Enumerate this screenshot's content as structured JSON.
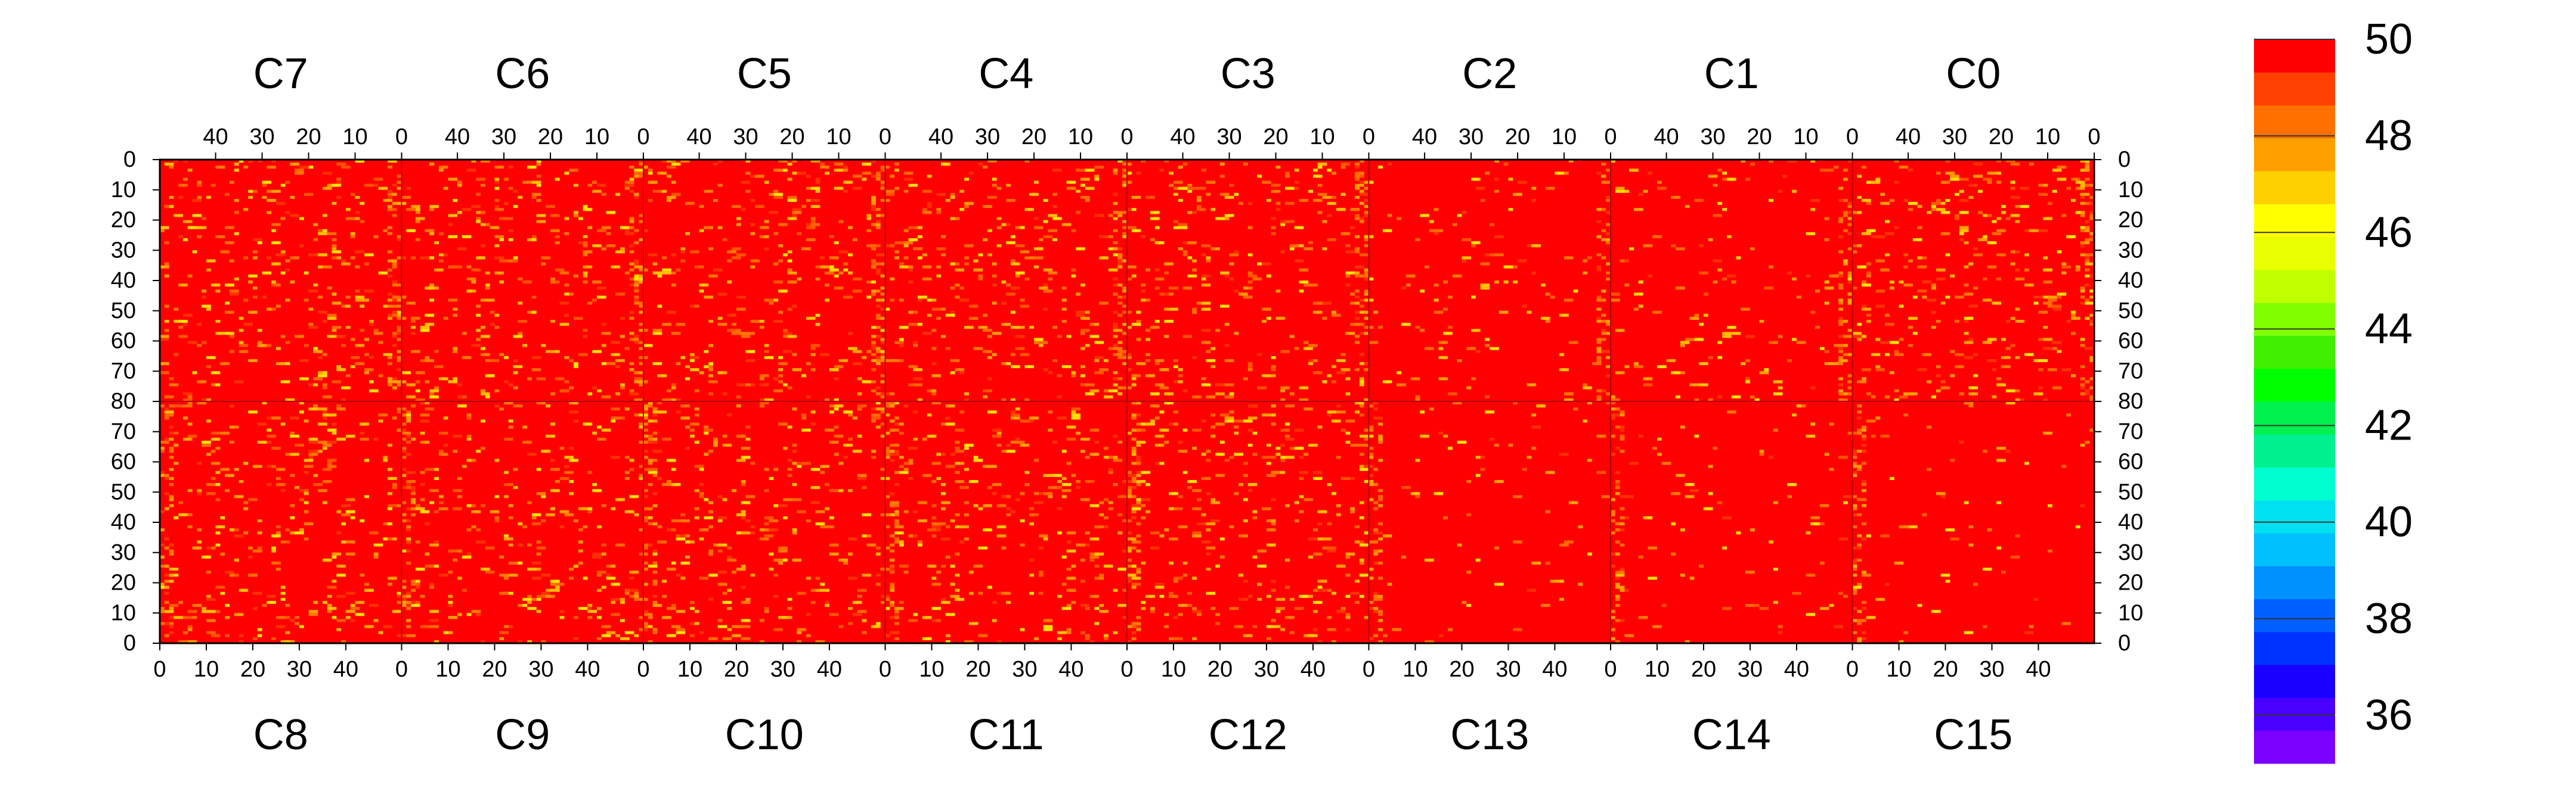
{
  "chart_data": {
    "type": "heatmap",
    "title": "",
    "colorbar": {
      "min": 35,
      "max": 50,
      "ticks": [
        36,
        38,
        40,
        42,
        44,
        46,
        48,
        50
      ],
      "colors": [
        "#7b00ff",
        "#4a00ff",
        "#1a00ff",
        "#0033ff",
        "#0060ff",
        "#0090ff",
        "#00bfff",
        "#00e0f0",
        "#00ffd0",
        "#00f090",
        "#00f050",
        "#00ff00",
        "#40f000",
        "#80ff00",
        "#c0ff00",
        "#e8ff00",
        "#ffff00",
        "#ffd000",
        "#ffa000",
        "#ff7000",
        "#ff4000",
        "#ff0000"
      ]
    },
    "top_row": {
      "chips": [
        "C7",
        "C6",
        "C5",
        "C4",
        "C3",
        "C2",
        "C1",
        "C0"
      ],
      "x_ticks": [
        "40",
        "30",
        "20",
        "10",
        "0"
      ],
      "y_ticks": [
        "0",
        "10",
        "20",
        "30",
        "40",
        "50",
        "60",
        "70",
        "80"
      ]
    },
    "bottom_row": {
      "chips": [
        "C8",
        "C9",
        "C10",
        "C11",
        "C12",
        "C13",
        "C14",
        "C15"
      ],
      "x_ticks": [
        "0",
        "10",
        "20",
        "30",
        "40"
      ],
      "y_ticks": [
        "80",
        "70",
        "60",
        "50",
        "40",
        "30",
        "20",
        "10",
        "0"
      ]
    },
    "grid": {
      "chip_columns": 52,
      "chip_rows": 80,
      "baseline_value": 50
    }
  }
}
